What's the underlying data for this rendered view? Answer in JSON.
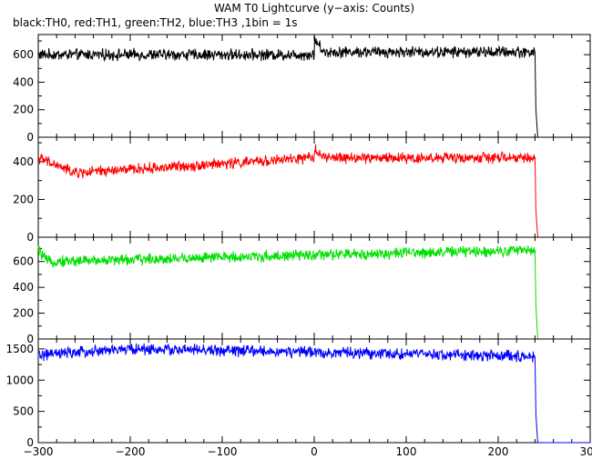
{
  "title": "WAM T0 Lightcurve (y−axis: Counts)",
  "subtitle": "black:TH0, red:TH1, green:TH2, blue:TH3 ,1bin = 1s",
  "chart_data": [
    {
      "type": "line",
      "name": "TH0",
      "color": "#000000",
      "x_range": [
        -300,
        300
      ],
      "x_ticks": [
        -300,
        -200,
        -100,
        0,
        100,
        200,
        300
      ],
      "y_range": [
        0,
        720
      ],
      "y_ticks": [
        0,
        200,
        400,
        600
      ],
      "tick_labels": [
        "0",
        "200",
        "400",
        "600"
      ],
      "points": [
        [
          -300,
          600
        ],
        [
          0,
          600
        ],
        [
          0,
          720
        ],
        [
          10,
          620
        ],
        [
          240,
          620
        ],
        [
          241,
          200
        ],
        [
          243,
          0
        ],
        [
          300,
          0
        ]
      ]
    },
    {
      "type": "line",
      "name": "TH1",
      "color": "#ff0000",
      "x_range": [
        -300,
        300
      ],
      "x_ticks": [
        -300,
        -200,
        -100,
        0,
        100,
        200,
        300
      ],
      "y_range": [
        0,
        510
      ],
      "y_ticks": [
        0,
        200,
        400
      ],
      "tick_labels": [
        "0",
        "200",
        "400"
      ],
      "points": [
        [
          -300,
          420
        ],
        [
          -260,
          340
        ],
        [
          0,
          420
        ],
        [
          0,
          480
        ],
        [
          10,
          420
        ],
        [
          240,
          420
        ],
        [
          241,
          140
        ],
        [
          243,
          0
        ],
        [
          300,
          0
        ]
      ]
    },
    {
      "type": "line",
      "name": "TH2",
      "color": "#00e000",
      "x_range": [
        -300,
        300
      ],
      "x_ticks": [
        -300,
        -200,
        -100,
        0,
        100,
        200,
        300
      ],
      "y_range": [
        0,
        760
      ],
      "y_ticks": [
        0,
        200,
        400,
        600
      ],
      "tick_labels": [
        "0",
        "200",
        "400",
        "600"
      ],
      "points": [
        [
          -300,
          690
        ],
        [
          -290,
          600
        ],
        [
          240,
          690
        ],
        [
          241,
          260
        ],
        [
          243,
          0
        ],
        [
          300,
          0
        ]
      ]
    },
    {
      "type": "line",
      "name": "TH3",
      "color": "#0000ff",
      "x_range": [
        -300,
        300
      ],
      "x_ticks": [
        -300,
        -200,
        -100,
        0,
        100,
        200,
        300
      ],
      "y_range": [
        0,
        1600
      ],
      "y_ticks": [
        0,
        500,
        1000,
        1500
      ],
      "tick_labels": [
        "0",
        "500",
        "1000",
        "1500"
      ],
      "points": [
        [
          -300,
          1400
        ],
        [
          -200,
          1500
        ],
        [
          240,
          1380
        ],
        [
          241,
          450
        ],
        [
          243,
          0
        ],
        [
          300,
          0
        ]
      ]
    }
  ],
  "x_tick_labels": [
    "−300",
    "−200",
    "−100",
    "0",
    "100",
    "200",
    "300"
  ]
}
